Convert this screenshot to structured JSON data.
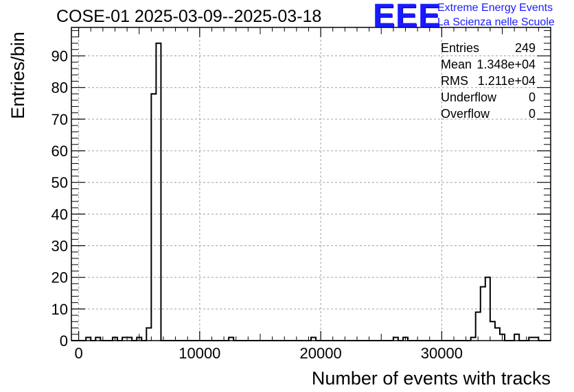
{
  "title": "COSE-01 2025-03-09--2025-03-18",
  "logo": {
    "mark": "EEE",
    "line1": "Extreme Energy Events",
    "line2": "La Scienza nelle Scuole",
    "color": "#1a1aff"
  },
  "stats": {
    "entries_label": "Entries",
    "entries_value": "249",
    "mean_label": "Mean",
    "mean_value": "1.348e+04",
    "rms_label": "RMS",
    "rms_value": "1.211e+04",
    "underflow_label": "Underflow",
    "underflow_value": "0",
    "overflow_label": "Overflow",
    "overflow_value": "0"
  },
  "chart_data": {
    "type": "bar",
    "title": "COSE-01 2025-03-09--2025-03-18",
    "xlabel": "Number of events with tracks",
    "ylabel": "Entries/bin",
    "xlim": [
      -600,
      39000
    ],
    "ylim": [
      0,
      99
    ],
    "bin_width": 400,
    "grid": true,
    "xticks": [
      0,
      10000,
      20000,
      30000
    ],
    "xtick_labels": [
      "0",
      "10000",
      "20000",
      "30000"
    ],
    "yticks": [
      0,
      10,
      20,
      30,
      40,
      50,
      60,
      70,
      80,
      90
    ],
    "ytick_labels": [
      "0",
      "10",
      "20",
      "30",
      "40",
      "50",
      "60",
      "70",
      "80",
      "90"
    ],
    "bins": [
      {
        "x": 600,
        "y": 1
      },
      {
        "x": 1400,
        "y": 1
      },
      {
        "x": 2800,
        "y": 1
      },
      {
        "x": 3600,
        "y": 1
      },
      {
        "x": 4000,
        "y": 1
      },
      {
        "x": 4800,
        "y": 1
      },
      {
        "x": 5600,
        "y": 4
      },
      {
        "x": 6000,
        "y": 78
      },
      {
        "x": 6400,
        "y": 94
      },
      {
        "x": 12400,
        "y": 1
      },
      {
        "x": 19200,
        "y": 1
      },
      {
        "x": 26000,
        "y": 1
      },
      {
        "x": 26800,
        "y": 1
      },
      {
        "x": 32400,
        "y": 1
      },
      {
        "x": 32800,
        "y": 9
      },
      {
        "x": 33200,
        "y": 17
      },
      {
        "x": 33600,
        "y": 20
      },
      {
        "x": 34000,
        "y": 6
      },
      {
        "x": 34400,
        "y": 4
      },
      {
        "x": 34800,
        "y": 2
      },
      {
        "x": 36000,
        "y": 2
      },
      {
        "x": 37200,
        "y": 1
      },
      {
        "x": 37600,
        "y": 1
      }
    ],
    "stats_box": "top-right"
  }
}
